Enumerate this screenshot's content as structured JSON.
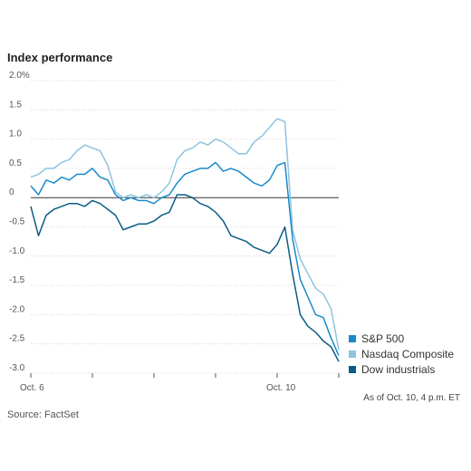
{
  "chart_data": {
    "type": "line",
    "title": "Index performance",
    "y_unit_suffix": "%",
    "ylim": [
      -3.0,
      2.0
    ],
    "yticks": [
      2.0,
      1.5,
      1.0,
      0.5,
      0,
      -0.5,
      -1.0,
      -1.5,
      -2.0,
      -2.5,
      -3.0
    ],
    "ytick_labels": [
      "2.0%",
      "1.5",
      "1.0",
      "0.5",
      "0",
      "-0.5",
      "-1.0",
      "-1.5",
      "-2.0",
      "-2.5",
      "-3.0"
    ],
    "x_points": 41,
    "xlim": [
      0,
      40
    ],
    "x_day_ticks": [
      0,
      8,
      16,
      24,
      32,
      40
    ],
    "x_tick_labels": [
      {
        "x": 0,
        "label": "Oct. 6"
      },
      {
        "x": 32,
        "label": "Oct. 10"
      }
    ],
    "series": [
      {
        "name": "S&P 500",
        "color": "#1a8ac9",
        "values": [
          0.2,
          0.05,
          0.3,
          0.25,
          0.35,
          0.3,
          0.4,
          0.4,
          0.5,
          0.35,
          0.3,
          0.05,
          -0.05,
          0.0,
          -0.05,
          -0.05,
          -0.1,
          0.0,
          0.05,
          0.25,
          0.4,
          0.45,
          0.5,
          0.5,
          0.6,
          0.45,
          0.5,
          0.45,
          0.35,
          0.25,
          0.2,
          0.3,
          0.55,
          0.6,
          -0.7,
          -1.4,
          -1.7,
          -2.0,
          -2.05,
          -2.4,
          -2.7
        ]
      },
      {
        "name": "Nasdaq Composite",
        "color": "#8ec3df",
        "values": [
          0.35,
          0.4,
          0.5,
          0.5,
          0.6,
          0.65,
          0.8,
          0.9,
          0.85,
          0.8,
          0.55,
          0.1,
          0.0,
          0.05,
          0.0,
          0.05,
          0.0,
          0.1,
          0.25,
          0.65,
          0.8,
          0.85,
          0.95,
          0.9,
          1.0,
          0.95,
          0.85,
          0.75,
          0.75,
          0.95,
          1.05,
          1.2,
          1.35,
          1.3,
          -0.55,
          -1.05,
          -1.3,
          -1.55,
          -1.65,
          -1.9,
          -2.6
        ]
      },
      {
        "name": "Dow industrials",
        "color": "#0b5c86",
        "values": [
          -0.15,
          -0.65,
          -0.3,
          -0.2,
          -0.15,
          -0.1,
          -0.1,
          -0.15,
          -0.05,
          -0.1,
          -0.2,
          -0.3,
          -0.55,
          -0.5,
          -0.45,
          -0.45,
          -0.4,
          -0.3,
          -0.25,
          0.05,
          0.05,
          0.0,
          -0.1,
          -0.15,
          -0.25,
          -0.4,
          -0.65,
          -0.7,
          -0.75,
          -0.85,
          -0.9,
          -0.95,
          -0.8,
          -0.5,
          -1.3,
          -2.0,
          -2.2,
          -2.3,
          -2.45,
          -2.55,
          -2.8
        ]
      }
    ]
  },
  "note": "As of Oct. 10, 4 p.m. ET",
  "source": "Source: FactSet"
}
